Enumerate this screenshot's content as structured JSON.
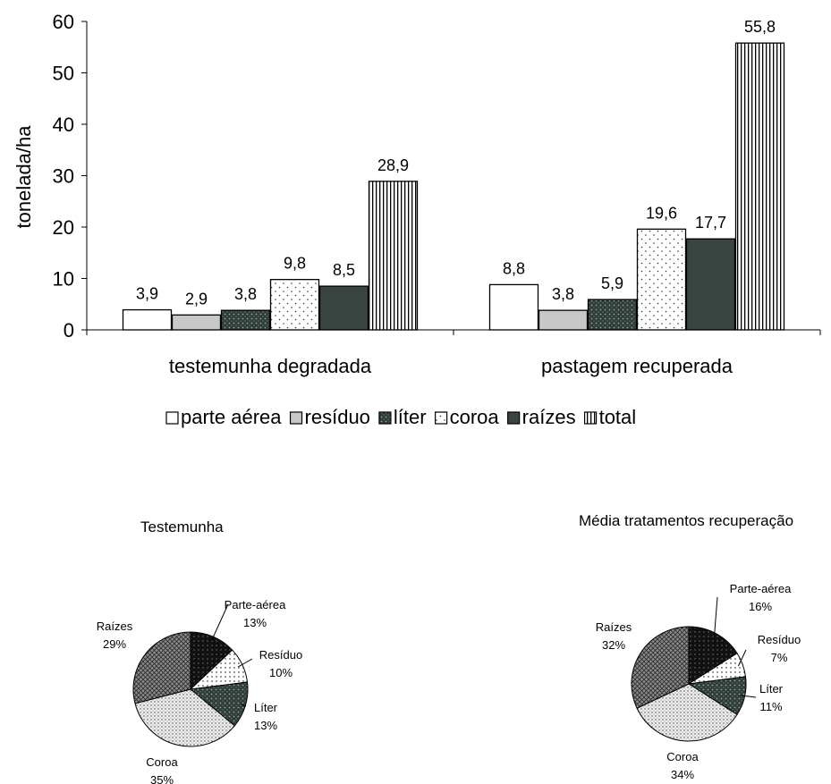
{
  "chart_data": [
    {
      "type": "bar",
      "ylabel": "tonelada/ha",
      "ylim": [
        0,
        60
      ],
      "yticks": [
        "0",
        "10",
        "20",
        "30",
        "40",
        "50",
        "60"
      ],
      "categories": [
        "testemunha degradada",
        "pastagem recuperada"
      ],
      "series": [
        {
          "name": "parte aérea",
          "values": [
            3.9,
            8.8
          ],
          "labels": [
            "3,9",
            "8,8"
          ],
          "pattern": "white"
        },
        {
          "name": "resíduo",
          "values": [
            2.9,
            3.8
          ],
          "labels": [
            "2,9",
            "3,8"
          ],
          "pattern": "gray"
        },
        {
          "name": "líter",
          "values": [
            3.8,
            5.9
          ],
          "labels": [
            "3,8",
            "5,9"
          ],
          "pattern": "dark-dots"
        },
        {
          "name": "coroa",
          "values": [
            9.8,
            19.6
          ],
          "labels": [
            "9,8",
            "19,6"
          ],
          "pattern": "sparse-dots"
        },
        {
          "name": "raízes",
          "values": [
            8.5,
            17.7
          ],
          "labels": [
            "8,5",
            "17,7"
          ],
          "pattern": "dark"
        },
        {
          "name": "total",
          "values": [
            28.9,
            55.8
          ],
          "labels": [
            "28,9",
            "55,8"
          ],
          "pattern": "vertical-lines"
        }
      ],
      "legend_position": "bottom",
      "grid": false
    },
    {
      "type": "pie",
      "title": "Testemunha",
      "slices": [
        {
          "name": "Parte-aérea",
          "value": 13,
          "label": "13%",
          "pattern": "black-dots"
        },
        {
          "name": "Resíduo",
          "value": 10,
          "label": "10%",
          "pattern": "white-dots"
        },
        {
          "name": "Líter",
          "value": 13,
          "label": "13%",
          "pattern": "dark-dots"
        },
        {
          "name": "Coroa",
          "value": 35,
          "label": "35%",
          "pattern": "light-dots"
        },
        {
          "name": "Raízes",
          "value": 29,
          "label": "29%",
          "pattern": "crosshatch"
        }
      ]
    },
    {
      "type": "pie",
      "title": "Média  tratamentos recuperação",
      "slices": [
        {
          "name": "Parte-aérea",
          "value": 16,
          "label": "16%",
          "pattern": "black-dots"
        },
        {
          "name": "Resíduo",
          "value": 7,
          "label": "7%",
          "pattern": "white-dots"
        },
        {
          "name": "Líter",
          "value": 11,
          "label": "11%",
          "pattern": "dark-dots"
        },
        {
          "name": "Coroa",
          "value": 34,
          "label": "34%",
          "pattern": "light-dots"
        },
        {
          "name": "Raízes",
          "value": 32,
          "label": "32%",
          "pattern": "crosshatch"
        }
      ]
    }
  ]
}
